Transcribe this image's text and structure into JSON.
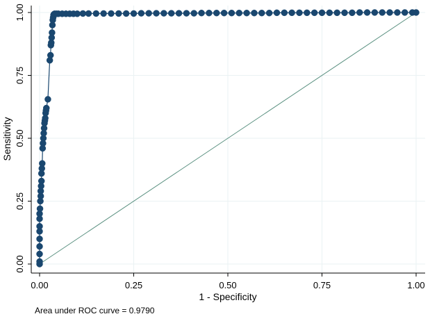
{
  "chart_data": {
    "type": "scatter",
    "title": "",
    "xlabel": "1 - Specificity",
    "ylabel": "Sensitivity",
    "xlim": [
      0,
      1
    ],
    "ylim": [
      0,
      1
    ],
    "x_ticks": [
      "0.00",
      "0.25",
      "0.50",
      "0.75",
      "1.00"
    ],
    "y_ticks": [
      "0.00",
      "0.25",
      "0.50",
      "0.75",
      "1.00"
    ],
    "grid": true,
    "legend": "none",
    "note": "Area under ROC curve = 0.9790",
    "colors": {
      "roc": "#1a476f",
      "reference": "#5a9080",
      "grid": "#eaf2f3",
      "axis": "#000000"
    },
    "series": [
      {
        "kind": "roc-curve",
        "x": [
          0.0,
          0.0,
          0.0,
          0.0,
          0.0,
          0.0,
          0.0,
          0.0,
          0.0,
          0.001,
          0.002,
          0.003,
          0.003,
          0.004,
          0.005,
          0.005,
          0.006,
          0.007,
          0.008,
          0.009,
          0.01,
          0.011,
          0.012,
          0.013,
          0.014,
          0.015,
          0.016,
          0.017,
          0.018,
          0.022,
          0.027,
          0.029,
          0.03,
          0.031,
          0.032,
          0.033,
          0.034,
          0.035,
          0.036,
          0.037,
          0.038,
          0.04,
          0.045,
          0.05,
          0.06,
          0.07,
          0.08,
          0.09,
          0.1,
          0.115,
          0.13,
          0.15,
          0.17,
          0.19,
          0.21,
          0.23,
          0.25,
          0.27,
          0.29,
          0.31,
          0.33,
          0.35,
          0.37,
          0.39,
          0.41,
          0.43,
          0.45,
          0.47,
          0.49,
          0.51,
          0.53,
          0.55,
          0.57,
          0.59,
          0.61,
          0.63,
          0.65,
          0.67,
          0.69,
          0.71,
          0.73,
          0.75,
          0.77,
          0.79,
          0.81,
          0.83,
          0.85,
          0.87,
          0.89,
          0.91,
          0.93,
          0.95,
          0.97,
          0.99,
          1.0
        ],
        "y": [
          0.0,
          0.01,
          0.04,
          0.07,
          0.1,
          0.13,
          0.15,
          0.18,
          0.2,
          0.22,
          0.25,
          0.27,
          0.29,
          0.31,
          0.33,
          0.36,
          0.38,
          0.4,
          0.46,
          0.48,
          0.5,
          0.52,
          0.54,
          0.56,
          0.57,
          0.58,
          0.6,
          0.61,
          0.62,
          0.655,
          0.81,
          0.83,
          0.87,
          0.88,
          0.9,
          0.92,
          0.95,
          0.97,
          0.98,
          0.99,
          0.993,
          0.995,
          0.995,
          0.995,
          0.995,
          0.995,
          0.995,
          0.995,
          0.995,
          0.996,
          0.996,
          0.996,
          0.996,
          0.996,
          0.996,
          0.996,
          0.996,
          0.997,
          0.997,
          0.997,
          0.997,
          0.997,
          0.997,
          0.997,
          0.997,
          0.998,
          0.998,
          0.998,
          0.998,
          0.998,
          0.998,
          0.998,
          0.998,
          0.998,
          0.998,
          0.999,
          0.999,
          0.999,
          0.999,
          0.999,
          0.999,
          0.999,
          0.999,
          0.999,
          0.999,
          0.999,
          1.0,
          1.0,
          1.0,
          1.0,
          1.0,
          1.0,
          1.0,
          1.0,
          1.0
        ]
      },
      {
        "kind": "reference-line",
        "x": [
          0,
          1
        ],
        "y": [
          0,
          1
        ]
      }
    ]
  }
}
